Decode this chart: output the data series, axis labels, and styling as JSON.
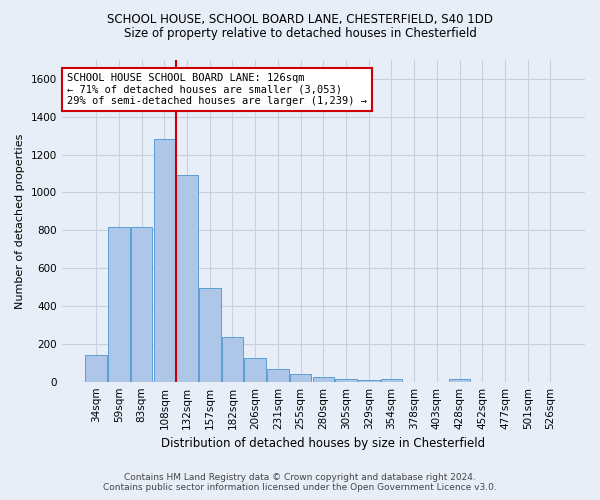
{
  "title_line1": "SCHOOL HOUSE, SCHOOL BOARD LANE, CHESTERFIELD, S40 1DD",
  "title_line2": "Size of property relative to detached houses in Chesterfield",
  "xlabel": "Distribution of detached houses by size in Chesterfield",
  "ylabel": "Number of detached properties",
  "footer_line1": "Contains HM Land Registry data © Crown copyright and database right 2024.",
  "footer_line2": "Contains public sector information licensed under the Open Government Licence v3.0.",
  "categories": [
    "34sqm",
    "59sqm",
    "83sqm",
    "108sqm",
    "132sqm",
    "157sqm",
    "182sqm",
    "206sqm",
    "231sqm",
    "255sqm",
    "280sqm",
    "305sqm",
    "329sqm",
    "354sqm",
    "378sqm",
    "403sqm",
    "428sqm",
    "452sqm",
    "477sqm",
    "501sqm",
    "526sqm"
  ],
  "values": [
    140,
    815,
    815,
    1285,
    1090,
    495,
    235,
    125,
    65,
    38,
    25,
    15,
    8,
    15,
    0,
    0,
    15,
    0,
    0,
    0,
    0
  ],
  "bar_color": "#aec6e8",
  "bar_edge_color": "#5a9fd4",
  "background_color": "#e8eef8",
  "grid_color": "#c8d0e0",
  "vline_pos": 3.5,
  "vline_color": "#cc0000",
  "annotation_box_text": "SCHOOL HOUSE SCHOOL BOARD LANE: 126sqm\n← 71% of detached houses are smaller (3,053)\n29% of semi-detached houses are larger (1,239) →",
  "annotation_box_color": "#cc0000",
  "annotation_box_bg": "#ffffff",
  "ylim": [
    0,
    1700
  ],
  "yticks": [
    0,
    200,
    400,
    600,
    800,
    1000,
    1200,
    1400,
    1600
  ],
  "title_fontsize": 8.5,
  "ylabel_fontsize": 8,
  "xlabel_fontsize": 8.5,
  "tick_fontsize": 7.5,
  "annotation_fontsize": 7.5,
  "footer_fontsize": 6.5
}
